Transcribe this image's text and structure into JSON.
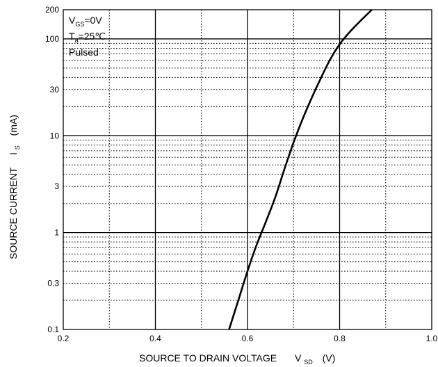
{
  "chart_data": {
    "type": "line",
    "title": "",
    "xlabel": "SOURCE TO DRAIN VOLTAGE",
    "xlabel_symbol": "V",
    "xlabel_subscript": "SD",
    "xlabel_unit": "(V)",
    "ylabel": "SOURCE CURRENT",
    "ylabel_symbol": "I",
    "ylabel_subscript": "S",
    "ylabel_unit": "(mA)",
    "xlim": [
      0.2,
      1.0
    ],
    "ylim": [
      0.1,
      200
    ],
    "yscale": "log",
    "grid": true,
    "x_ticks": [
      0.2,
      0.4,
      0.6,
      0.8,
      1.0
    ],
    "x_tick_labels": [
      "0.2",
      "0.4",
      "0.6",
      "0.8",
      "1.0"
    ],
    "y_ticks": [
      0.1,
      0.3,
      1,
      3,
      10,
      30,
      100,
      200
    ],
    "y_tick_labels": [
      "0.1",
      "0.3",
      "1",
      "3",
      "10",
      "30",
      "100",
      "200"
    ],
    "annotations": [
      {
        "main": "V",
        "sub": "GS",
        "rest": "=0V"
      },
      {
        "main": "T",
        "sub": "a",
        "rest": "=25℃"
      },
      {
        "main": "Pulsed",
        "sub": "",
        "rest": ""
      }
    ],
    "series": [
      {
        "x": [
          0.56,
          0.58,
          0.6,
          0.62,
          0.64,
          0.66,
          0.68,
          0.7,
          0.72,
          0.74,
          0.76,
          0.78,
          0.8,
          0.82,
          0.84,
          0.87
        ],
        "y": [
          0.1,
          0.2,
          0.4,
          0.75,
          1.3,
          2.3,
          4.5,
          8.5,
          15,
          25,
          40,
          62,
          88,
          115,
          145,
          200
        ]
      }
    ]
  }
}
